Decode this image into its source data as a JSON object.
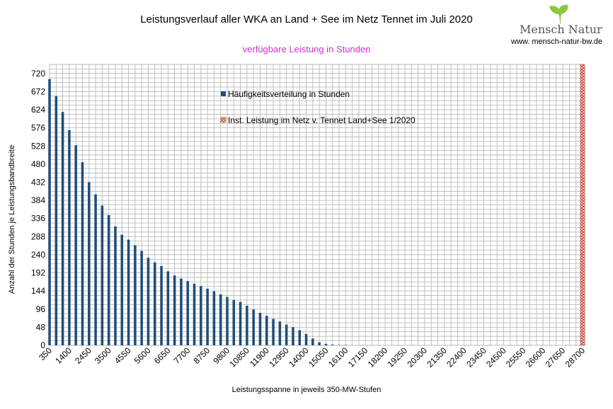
{
  "logo": {
    "name": "Mensch Natur",
    "url": "www. mensch-natur-bw.de",
    "leaf_color": "#8dc63f"
  },
  "chart_data": {
    "type": "bar",
    "title": "Leistungsverlauf aller WKA an Land + See im Netz Tennet im Juli 2020",
    "subtitle": "verfügbare Leistung in Stunden",
    "subtitle_color": "#cc33cc",
    "xlabel": "Leistungsspanne in jeweils 350-MW-Stufen",
    "ylabel": "Anzahl der Stunden je Leistungsbandbreite",
    "ylim": [
      0,
      744
    ],
    "yticks": [
      0,
      48,
      96,
      144,
      192,
      240,
      288,
      336,
      384,
      432,
      480,
      528,
      576,
      624,
      672,
      720
    ],
    "x_step": 350,
    "xlim": [
      350,
      28700
    ],
    "xticks": [
      350,
      1400,
      2450,
      3500,
      4550,
      5600,
      6650,
      7700,
      8750,
      9800,
      10850,
      11900,
      12950,
      14000,
      15050,
      16100,
      17150,
      18200,
      19250,
      20300,
      21350,
      22400,
      23450,
      24500,
      25550,
      26600,
      27650,
      28700
    ],
    "grid": true,
    "legend_position": "upper-middle",
    "series": [
      {
        "name": "Häufigkeitsverteilung in Stunden",
        "color": "#1f4e79",
        "x": [
          350,
          700,
          1050,
          1400,
          1750,
          2100,
          2450,
          2800,
          3150,
          3500,
          3850,
          4200,
          4550,
          4900,
          5250,
          5600,
          5950,
          6300,
          6650,
          7000,
          7350,
          7700,
          8050,
          8400,
          8750,
          9100,
          9450,
          9800,
          10150,
          10500,
          10850,
          11200,
          11550,
          11900,
          12250,
          12600,
          12950,
          13300,
          13650,
          14000,
          14350,
          14700,
          15050,
          15400,
          15750,
          16100
        ],
        "values": [
          705,
          660,
          618,
          570,
          530,
          485,
          432,
          400,
          370,
          345,
          315,
          293,
          280,
          265,
          250,
          232,
          220,
          210,
          196,
          185,
          177,
          170,
          163,
          157,
          150,
          143,
          135,
          128,
          120,
          115,
          105,
          95,
          86,
          78,
          70,
          63,
          55,
          48,
          40,
          30,
          18,
          8,
          4,
          2,
          1,
          1
        ]
      },
      {
        "name": "Inst. Leistung im Netz v. Tennet  Land+See 1/2020",
        "color": "#c0392b",
        "x": [
          28700
        ],
        "values": [
          744
        ]
      }
    ]
  }
}
